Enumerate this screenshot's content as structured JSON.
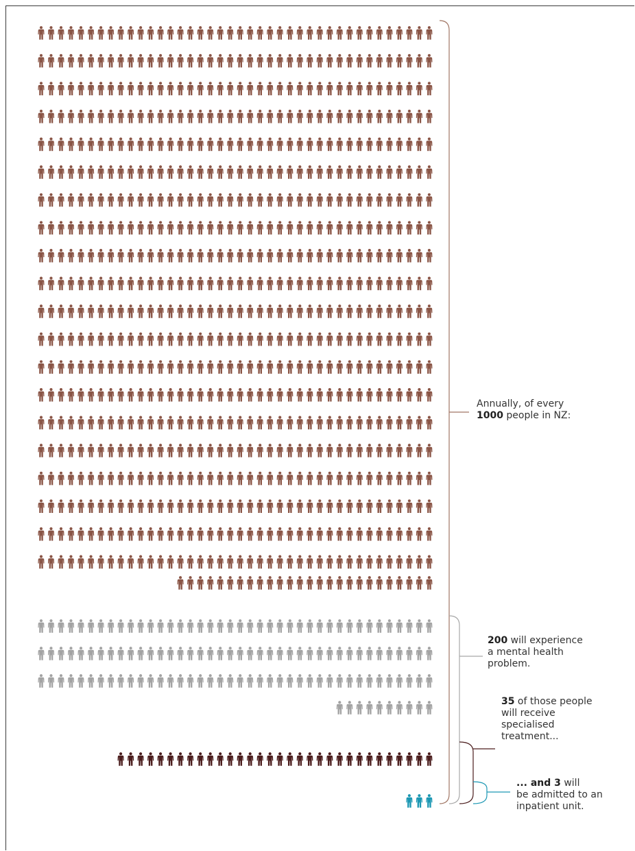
{
  "colors": {
    "population": "#8a5546",
    "mental_health": "#a3a3a3",
    "specialised": "#4a1c1c",
    "inpatient": "#1b97b3",
    "bracket_main": "#a07563",
    "bracket_grey": "#a8a8a8",
    "bracket_dark": "#4a1c1c",
    "bracket_teal": "#1b97b3"
  },
  "groups": {
    "population_rows_full": 20,
    "population_last_row": 26,
    "mental_health_rows_full": 3,
    "mental_health_last_row": 10,
    "specialised_count": 32,
    "inpatient_count": 3
  },
  "labels": {
    "annual": {
      "line1": "Annually, of every",
      "num": "1000",
      "line2_rest": " people in NZ:"
    },
    "mental": {
      "num": "200",
      "line1_rest": " will experience",
      "line2": "a mental health",
      "line3": "problem."
    },
    "specialised": {
      "num": "35",
      "line1_rest": " of those people",
      "line2": "will receive",
      "line3": "specialised",
      "line4": "treatment..."
    },
    "inpatient": {
      "num": "... and 3",
      "line1_rest": " will",
      "line2": "be admitted to an",
      "line3": "inpatient unit."
    }
  }
}
